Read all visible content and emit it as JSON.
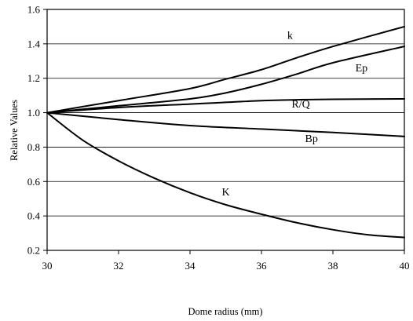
{
  "chart_data": {
    "type": "line",
    "title": "",
    "xlabel": "Dome radius (mm)",
    "ylabel": "Relative Values",
    "xlim": [
      30,
      40
    ],
    "ylim": [
      0.2,
      1.6
    ],
    "x_ticks": [
      "30",
      "32",
      "34",
      "36",
      "38",
      "40"
    ],
    "y_ticks": [
      "0.2",
      "0.4",
      "0.6",
      "0.8",
      "1.0",
      "1.2",
      "1.4",
      "1.6"
    ],
    "grid": "horizontal",
    "legend": "none",
    "series": [
      {
        "name": "k",
        "x": [
          30,
          32,
          34,
          35,
          36,
          37,
          38,
          40
        ],
        "y": [
          1.0,
          1.07,
          1.14,
          1.195,
          1.25,
          1.32,
          1.385,
          1.5
        ]
      },
      {
        "name": "Ep",
        "x": [
          30,
          32,
          34,
          35,
          36,
          37,
          38,
          40
        ],
        "y": [
          1.0,
          1.04,
          1.08,
          1.115,
          1.165,
          1.225,
          1.29,
          1.385
        ]
      },
      {
        "name": "R/Q",
        "x": [
          30,
          32,
          34,
          35,
          36,
          37,
          38,
          40
        ],
        "y": [
          1.0,
          1.03,
          1.05,
          1.06,
          1.07,
          1.075,
          1.078,
          1.08
        ]
      },
      {
        "name": "Bp",
        "x": [
          30,
          32,
          34,
          36,
          38,
          40
        ],
        "y": [
          1.0,
          0.96,
          0.925,
          0.905,
          0.885,
          0.862
        ]
      },
      {
        "name": "K",
        "x": [
          30,
          31,
          32,
          33,
          34,
          35,
          36,
          37,
          38,
          39,
          40
        ],
        "y": [
          1.0,
          0.84,
          0.72,
          0.62,
          0.535,
          0.465,
          0.41,
          0.36,
          0.32,
          0.29,
          0.275
        ]
      }
    ],
    "series_labels": [
      {
        "text": "k",
        "x": 36.8,
        "y": 1.43
      },
      {
        "text": "Ep",
        "x": 38.8,
        "y": 1.24
      },
      {
        "text": "R/Q",
        "x": 37.1,
        "y": 1.03
      },
      {
        "text": "Bp",
        "x": 37.4,
        "y": 0.83
      },
      {
        "text": "K",
        "x": 35.0,
        "y": 0.52
      }
    ]
  }
}
